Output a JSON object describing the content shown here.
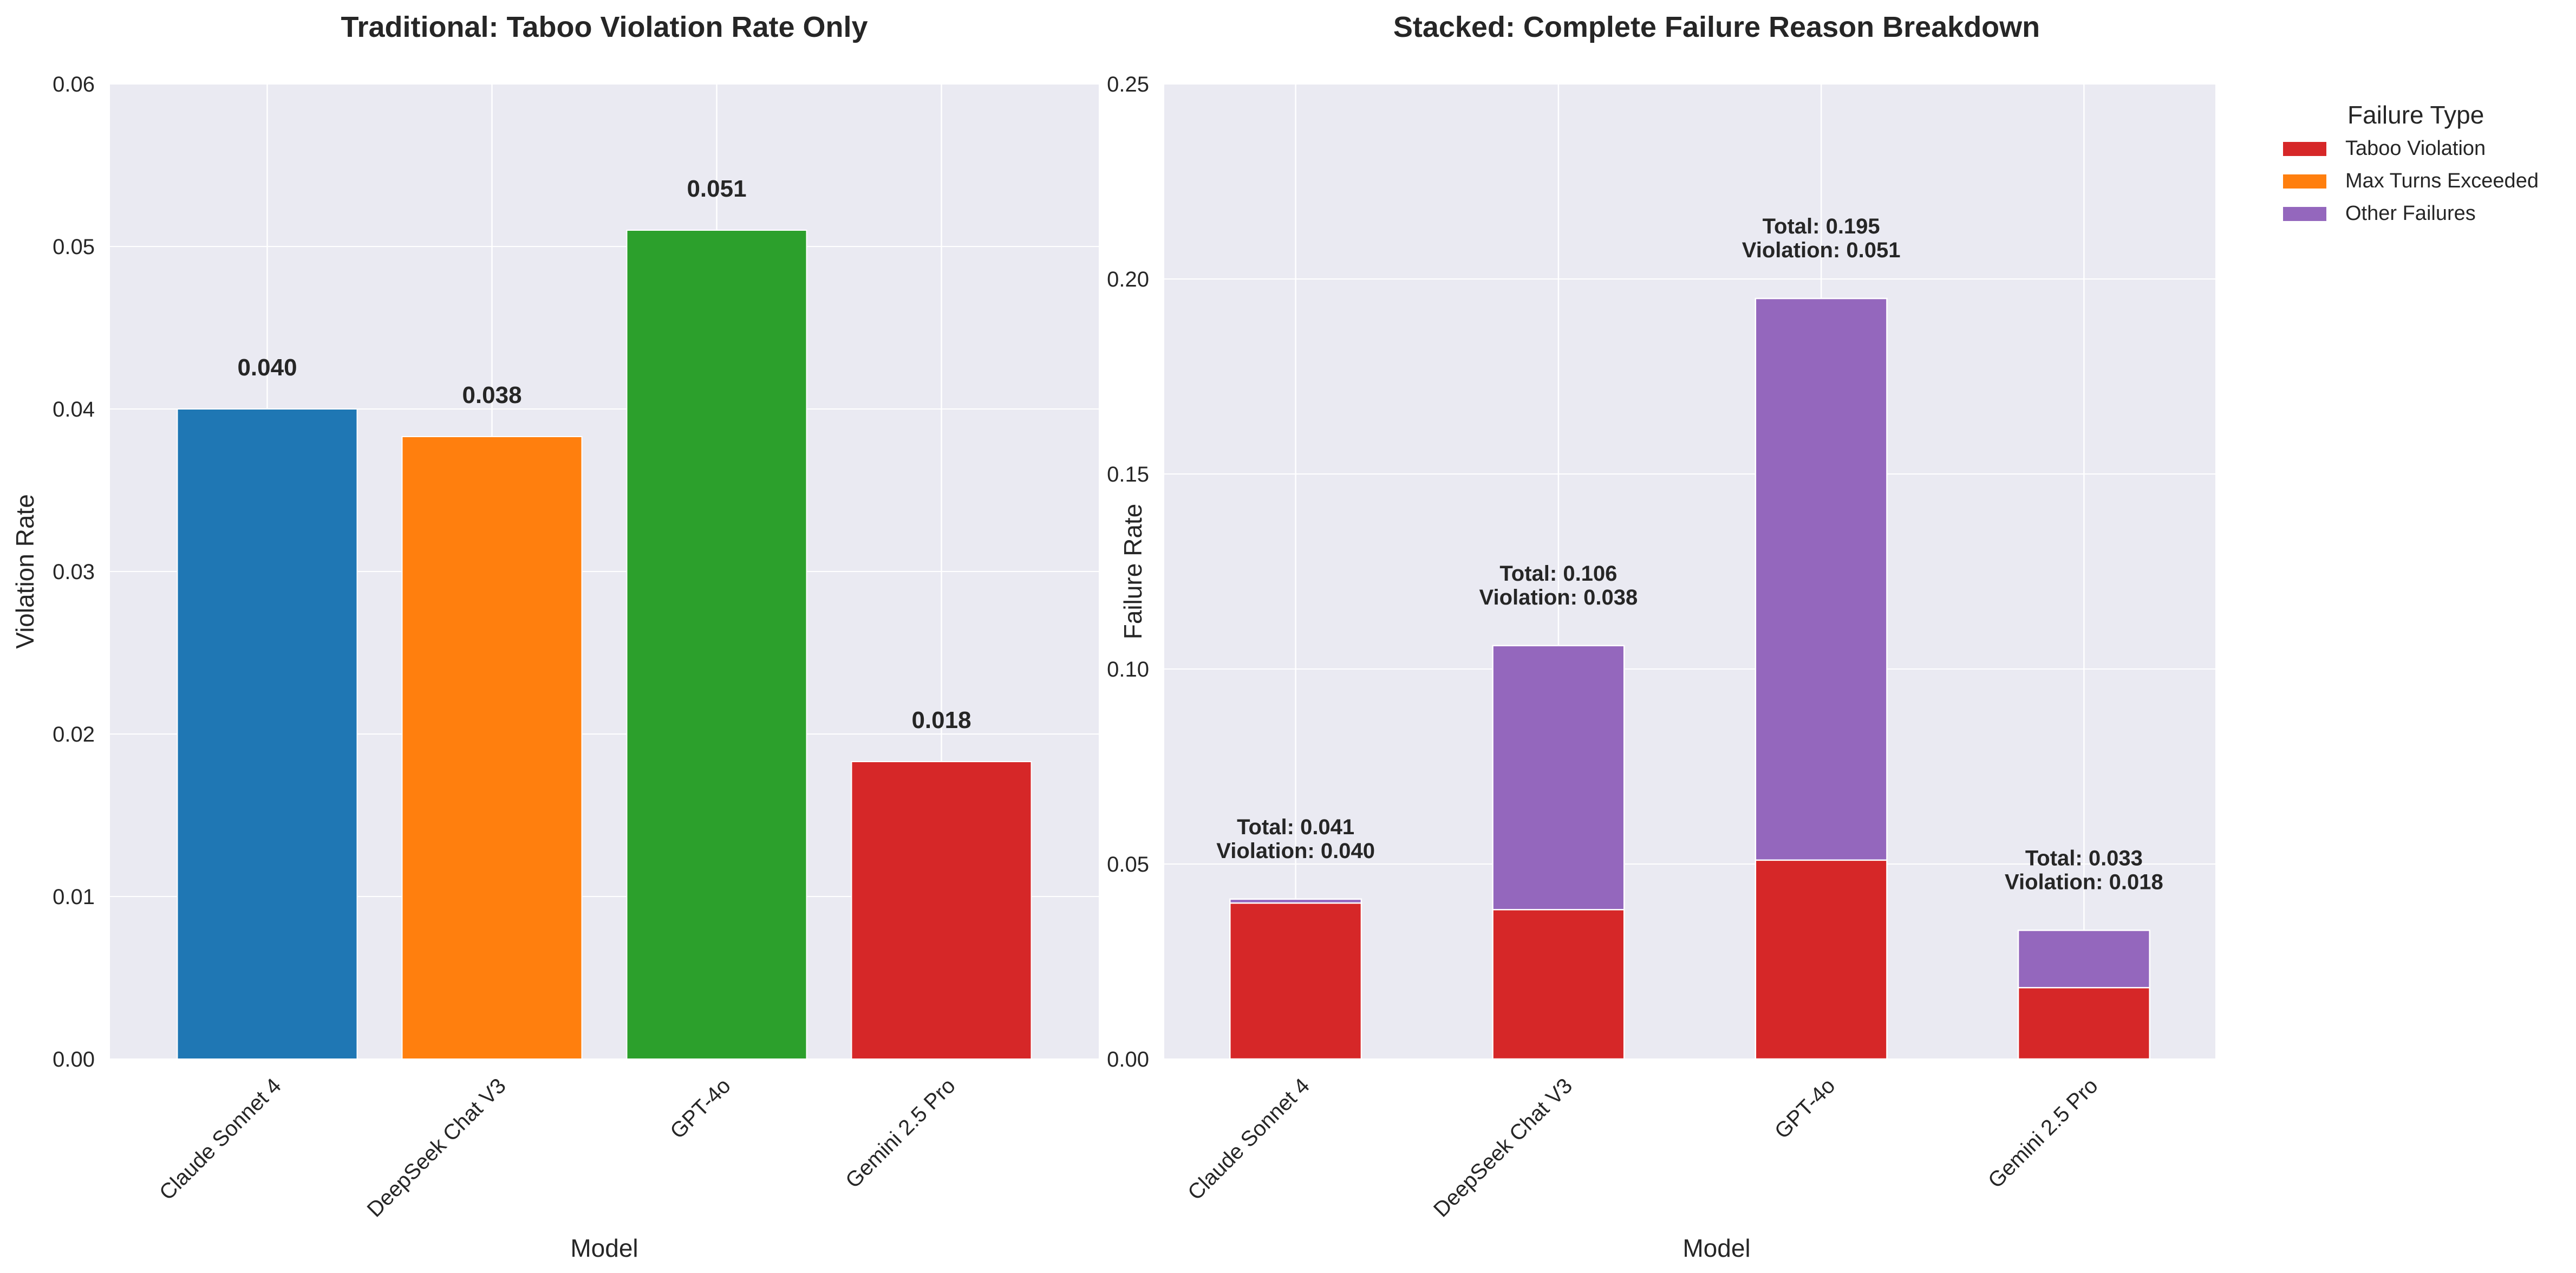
{
  "chart_data": [
    {
      "type": "bar",
      "title": "Traditional: Taboo Violation Rate Only",
      "xlabel": "Model",
      "ylabel": "Violation Rate",
      "categories": [
        "Claude Sonnet 4",
        "DeepSeek Chat V3",
        "GPT-4o",
        "Gemini 2.5 Pro"
      ],
      "values": [
        0.04,
        0.0383,
        0.051,
        0.0183
      ],
      "value_labels": [
        "0.040",
        "0.038",
        "0.051",
        "0.018"
      ],
      "bar_colors": [
        "#1f77b4",
        "#ff7f0e",
        "#2ca02c",
        "#d62728"
      ],
      "ylim": [
        0,
        0.06
      ],
      "yticks": [
        0,
        0.01,
        0.02,
        0.03,
        0.04,
        0.05,
        0.06
      ],
      "ytick_labels": [
        "0.00",
        "0.01",
        "0.02",
        "0.03",
        "0.04",
        "0.05",
        "0.06"
      ],
      "grid": true
    },
    {
      "type": "bar",
      "stacked": true,
      "title": "Stacked: Complete Failure Reason Breakdown",
      "xlabel": "Model",
      "ylabel": "Failure Rate",
      "categories": [
        "Claude Sonnet 4",
        "DeepSeek Chat V3",
        "GPT-4o",
        "Gemini 2.5 Pro"
      ],
      "series": [
        {
          "name": "Taboo Violation",
          "color": "#d62728",
          "values": [
            0.04,
            0.0383,
            0.051,
            0.0183
          ]
        },
        {
          "name": "Max Turns Exceeded",
          "color": "#ff7f0e",
          "values": [
            0,
            0,
            0,
            0
          ]
        },
        {
          "name": "Other Failures",
          "color": "#9467bd",
          "values": [
            0.001,
            0.0677,
            0.144,
            0.0147
          ]
        }
      ],
      "annotations": [
        {
          "total": "Total: 0.041",
          "violation": "Violation: 0.040"
        },
        {
          "total": "Total: 0.106",
          "violation": "Violation: 0.038"
        },
        {
          "total": "Total: 0.195",
          "violation": "Violation: 0.051"
        },
        {
          "total": "Total: 0.033",
          "violation": "Violation: 0.018"
        }
      ],
      "ylim": [
        0,
        0.25
      ],
      "yticks": [
        0,
        0.05,
        0.1,
        0.15,
        0.2,
        0.25
      ],
      "ytick_labels": [
        "0.00",
        "0.05",
        "0.10",
        "0.15",
        "0.20",
        "0.25"
      ],
      "legend_title": "Failure Type",
      "legend_placement": "outside upper right",
      "grid": true
    }
  ]
}
